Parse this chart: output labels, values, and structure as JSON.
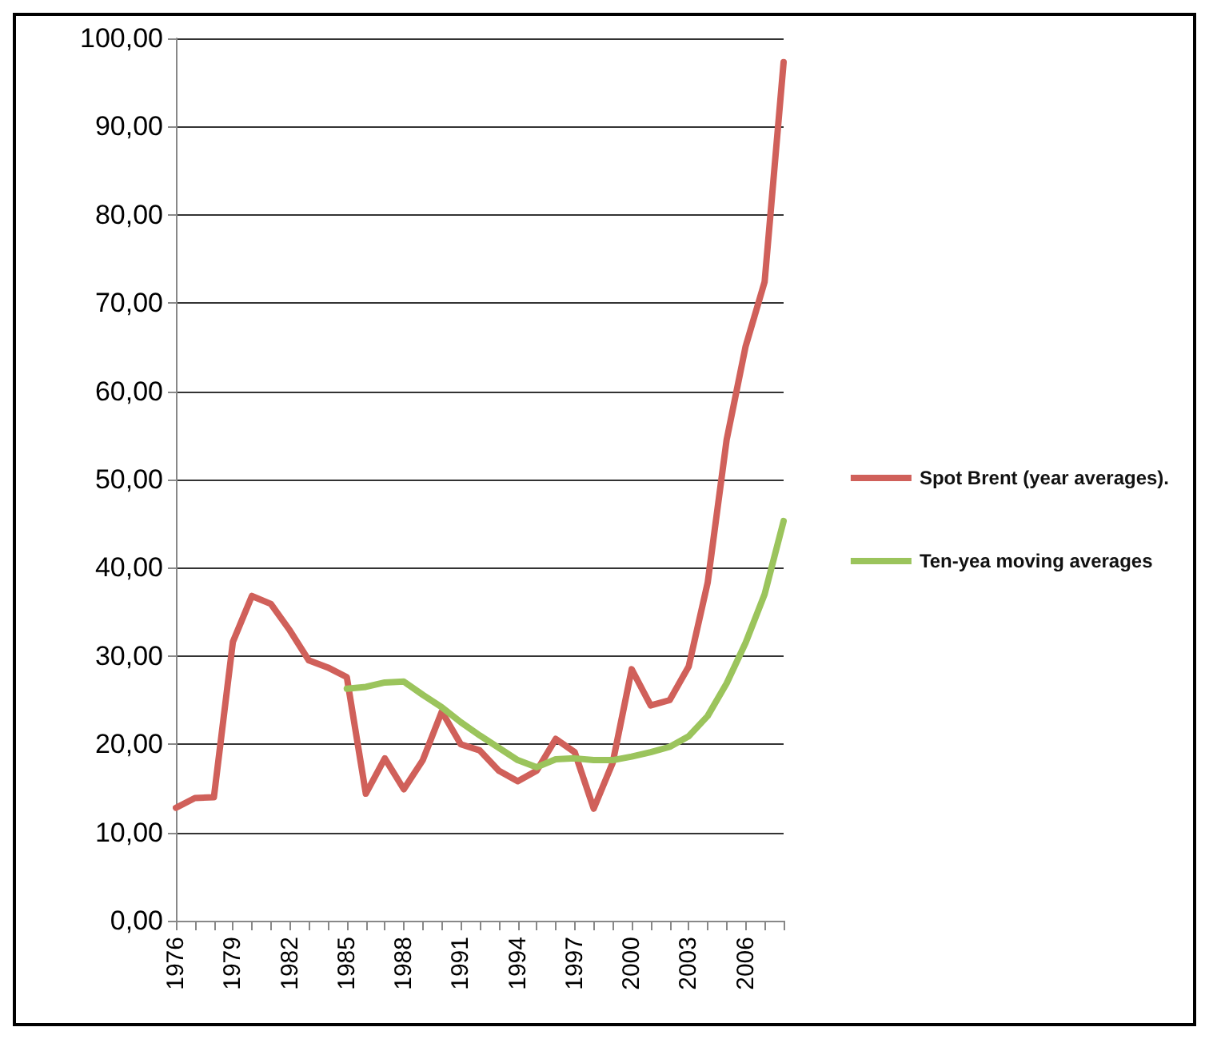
{
  "chart_data": {
    "type": "line",
    "categories": [
      "1976",
      null,
      null,
      "1979",
      null,
      null,
      "1982",
      null,
      null,
      "1985",
      null,
      null,
      "1988",
      null,
      null,
      "1991",
      null,
      null,
      "1994",
      null,
      null,
      "1997",
      null,
      null,
      "2000",
      null,
      null,
      "2003",
      null,
      null,
      "2006",
      null,
      null
    ],
    "series": [
      {
        "name": "Spot Brent (year averages).",
        "color": "#d0605a",
        "values": [
          12.8,
          13.9,
          14.0,
          31.6,
          36.8,
          35.9,
          32.9,
          29.5,
          28.7,
          27.6,
          14.4,
          18.4,
          14.9,
          18.2,
          23.7,
          20.0,
          19.3,
          17.0,
          15.8,
          17.0,
          20.6,
          19.1,
          12.7,
          17.9,
          28.5,
          24.4,
          25.0,
          28.8,
          38.3,
          54.5,
          65.1,
          72.4,
          97.3
        ]
      },
      {
        "name": "Ten-yea moving averages",
        "color": "#9bc45c",
        "values": [
          null,
          null,
          null,
          null,
          null,
          null,
          null,
          null,
          null,
          26.3,
          26.5,
          27.0,
          27.1,
          25.6,
          24.2,
          22.5,
          21.0,
          19.6,
          18.2,
          17.4,
          18.3,
          18.4,
          18.2,
          18.2,
          18.6,
          19.1,
          19.7,
          20.9,
          23.2,
          26.9,
          31.5,
          37.0,
          45.3
        ]
      }
    ],
    "ylim": [
      0,
      100
    ],
    "yticks": [
      {
        "value": 0,
        "label": "0,00"
      },
      {
        "value": 10,
        "label": "10,00"
      },
      {
        "value": 20,
        "label": "20,00"
      },
      {
        "value": 30,
        "label": "30,00"
      },
      {
        "value": 40,
        "label": "40,00"
      },
      {
        "value": 50,
        "label": "50,00"
      },
      {
        "value": 60,
        "label": "60,00"
      },
      {
        "value": 70,
        "label": "70,00"
      },
      {
        "value": 80,
        "label": "80,00"
      },
      {
        "value": 90,
        "label": "90,00"
      },
      {
        "value": 100,
        "label": "100,00"
      }
    ],
    "grid": "y",
    "legend": "right",
    "marker": "none",
    "line_style": "solid"
  }
}
